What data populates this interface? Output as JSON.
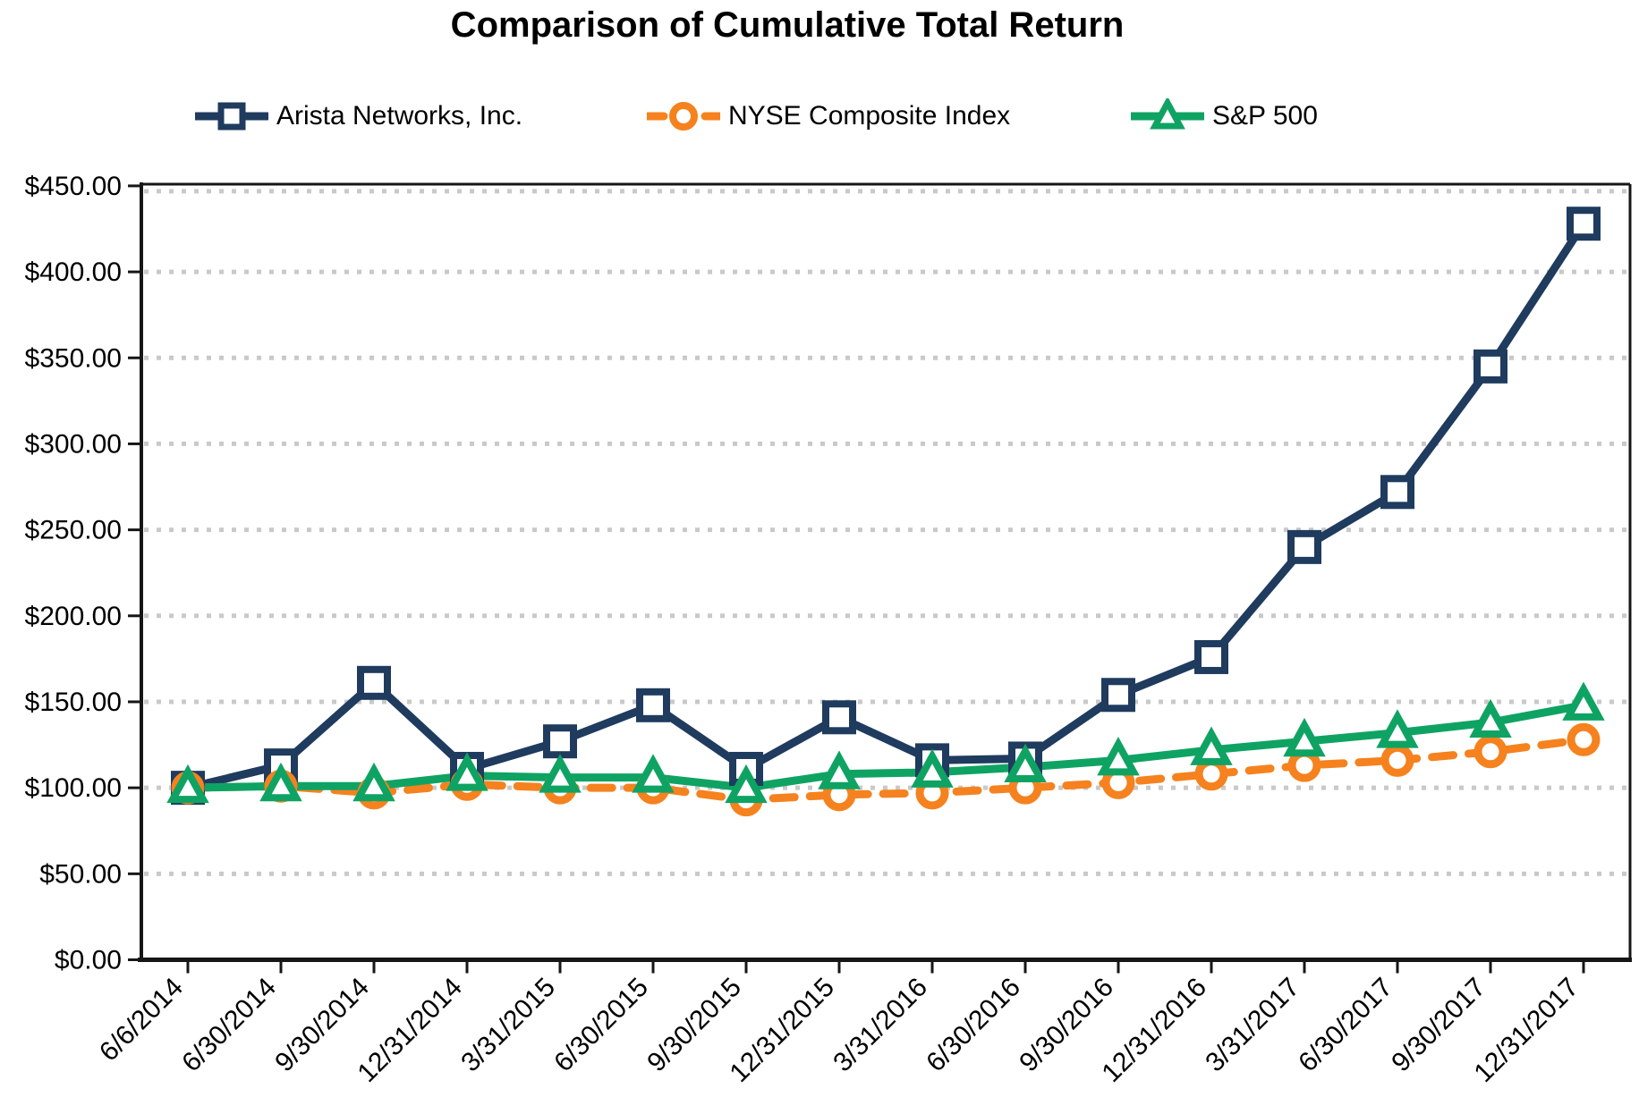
{
  "title": "Comparison of Cumulative Total Return",
  "chart_data": {
    "type": "line",
    "title": "Comparison of Cumulative Total Return",
    "categories": [
      "6/6/2014",
      "6/30/2014",
      "9/30/2014",
      "12/31/2014",
      "3/31/2015",
      "6/30/2015",
      "9/30/2015",
      "12/31/2015",
      "3/31/2016",
      "6/30/2016",
      "9/30/2016",
      "12/31/2016",
      "3/31/2017",
      "6/30/2017",
      "9/30/2017",
      "12/31/2017"
    ],
    "series": [
      {
        "name": "Arista Networks, Inc.",
        "color": "#1f3b5e",
        "marker": "square",
        "line_style": "solid",
        "values": [
          100,
          113,
          161,
          111,
          127,
          148,
          111,
          141,
          116,
          117,
          154,
          176,
          240,
          272,
          345,
          428
        ]
      },
      {
        "name": "NYSE Composite Index",
        "color": "#f5821e",
        "marker": "circle",
        "line_style": "dashed",
        "values": [
          100,
          101,
          97,
          102,
          100,
          100,
          93,
          96,
          97,
          100,
          103,
          108,
          113,
          116,
          121,
          128
        ]
      },
      {
        "name": "S&P 500",
        "color": "#0fa363",
        "marker": "triangle",
        "line_style": "solid",
        "values": [
          100,
          101,
          101,
          107,
          106,
          106,
          100,
          108,
          109,
          112,
          116,
          122,
          127,
          132,
          138,
          148
        ]
      }
    ],
    "xlabel": "",
    "ylabel": "",
    "ylim": [
      0,
      450
    ],
    "y_tick_step": 50,
    "y_ticks": [
      "$0.00",
      "$50.00",
      "$100.00",
      "$150.00",
      "$200.00",
      "$250.00",
      "$300.00",
      "$350.00",
      "$400.00",
      "$450.00"
    ],
    "grid": "horizontal-dotted",
    "gridline_color": "#c9c9c9",
    "axis_color": "#161616",
    "legend_position": "top"
  }
}
